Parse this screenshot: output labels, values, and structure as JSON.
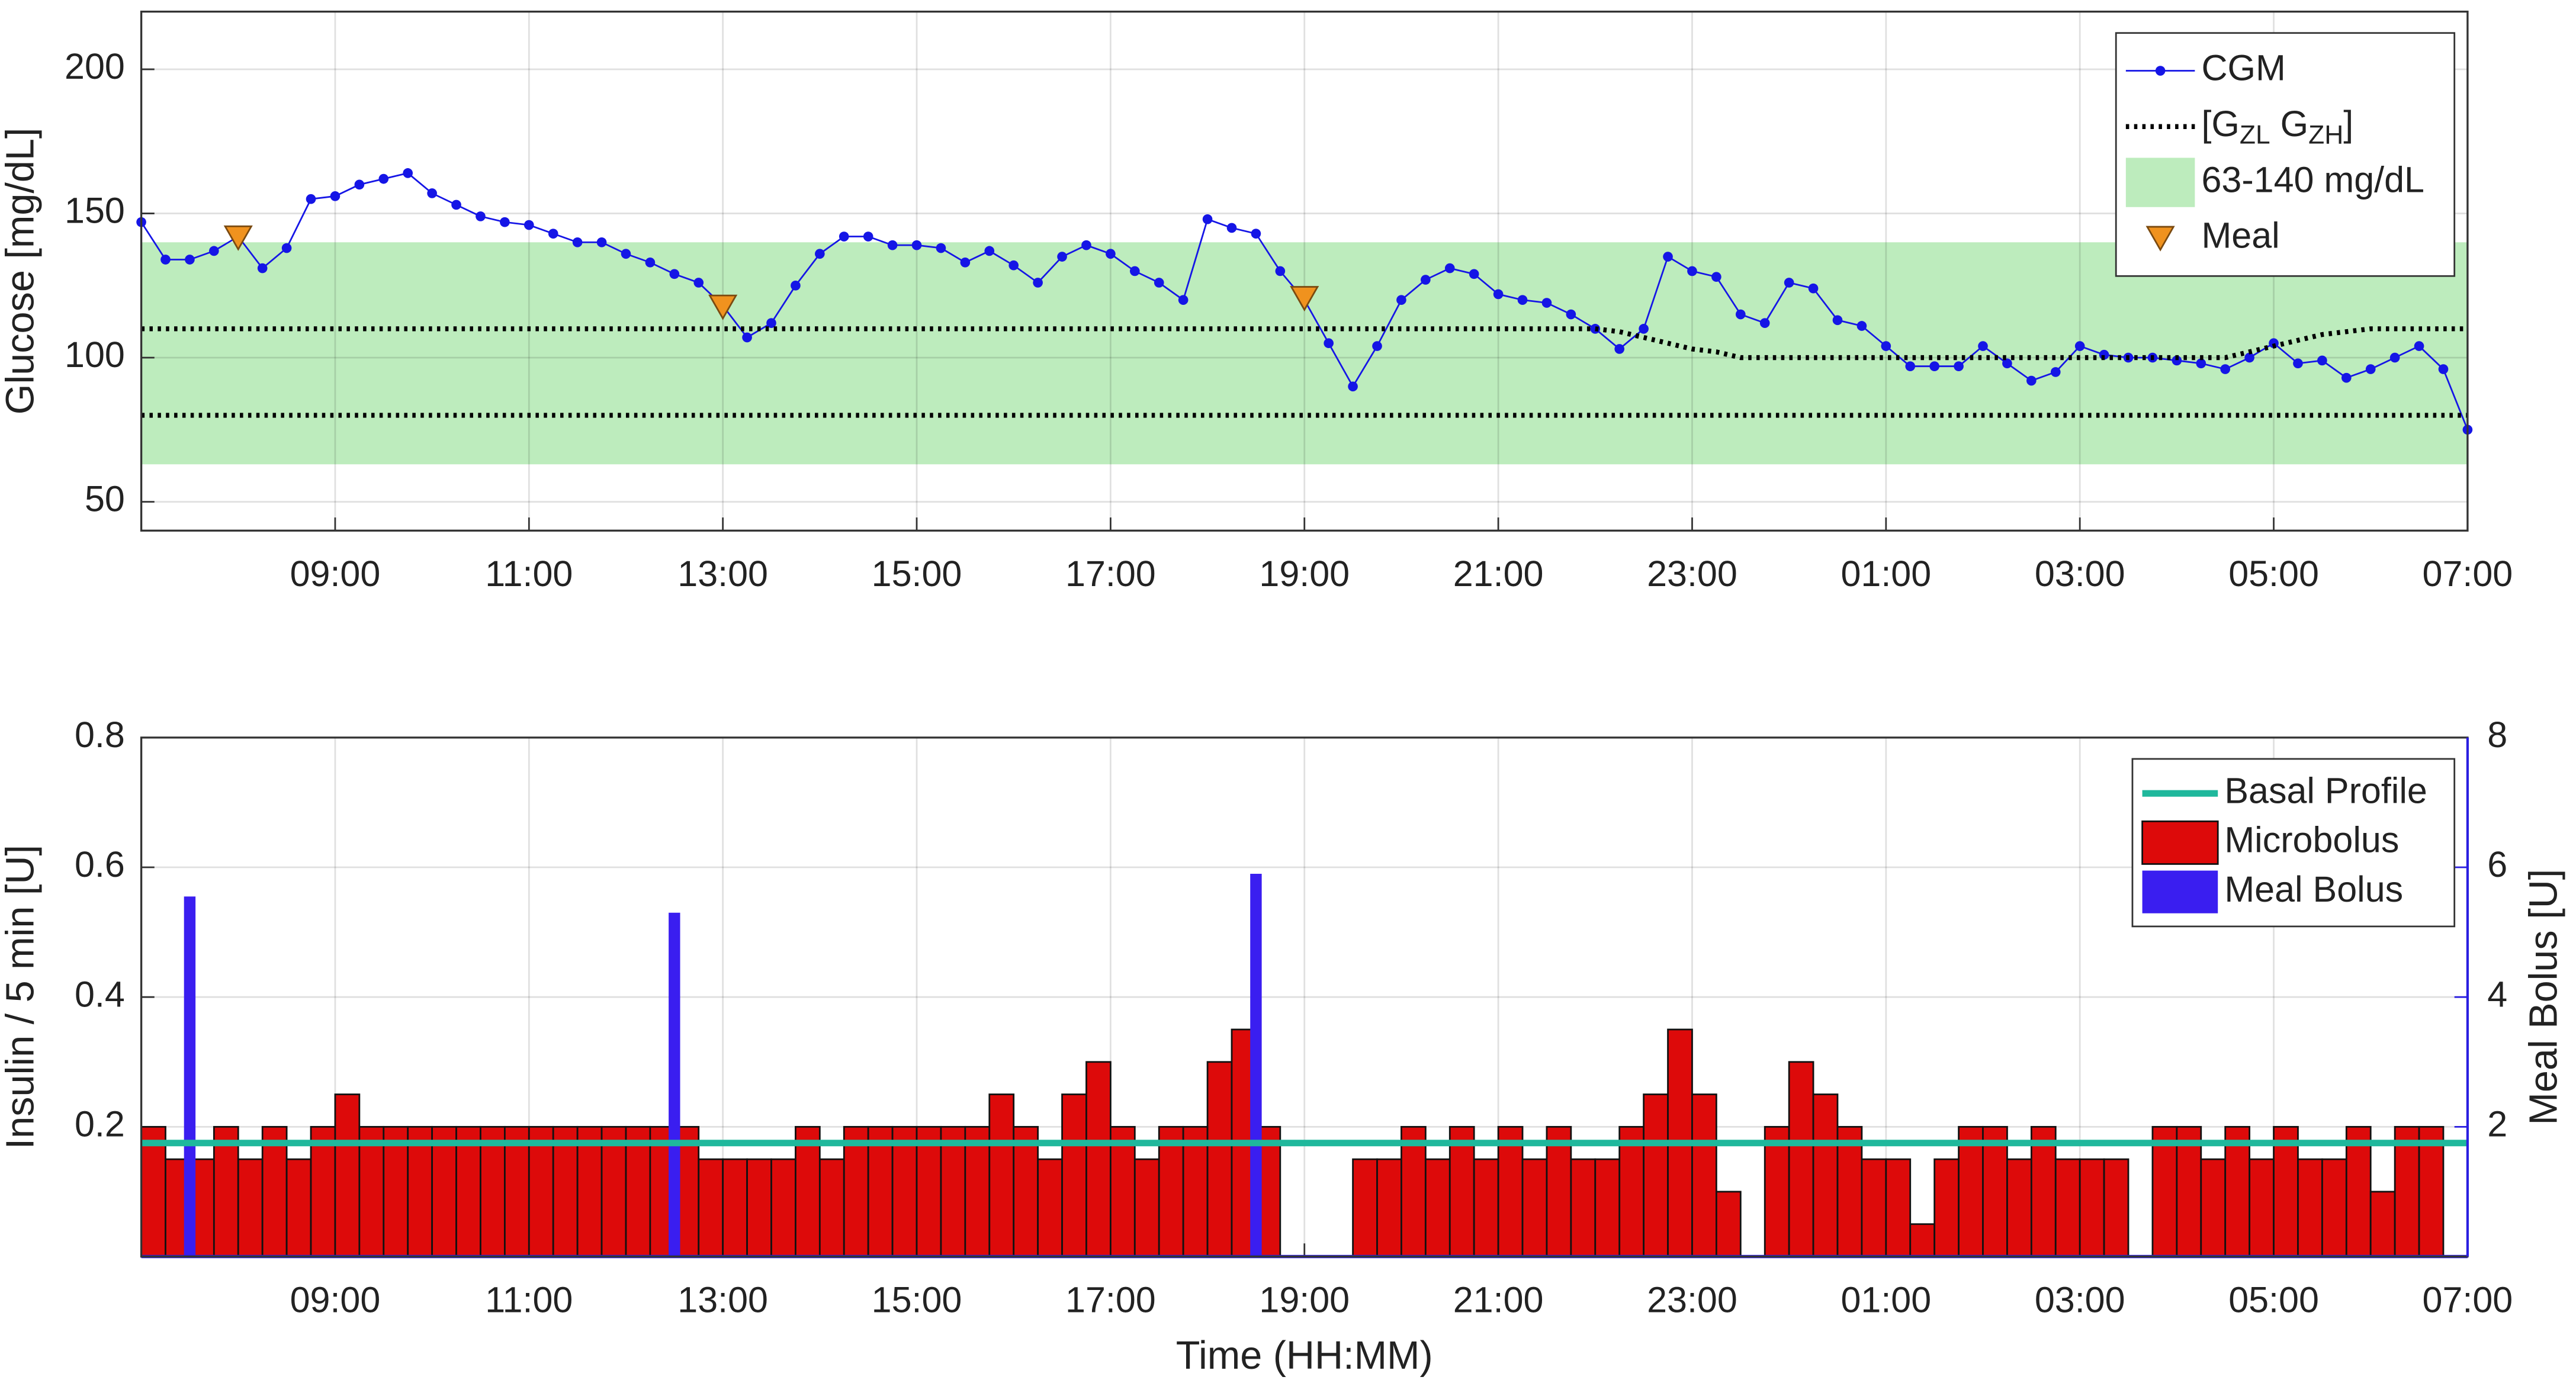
{
  "chart_data": [
    {
      "type": "line",
      "ylabel": "Glucose [mg/dL]",
      "xlim": [
        7,
        31
      ],
      "xticks": [
        {
          "value": 9,
          "label": "09:00"
        },
        {
          "value": 11,
          "label": "11:00"
        },
        {
          "value": 13,
          "label": "13:00"
        },
        {
          "value": 15,
          "label": "15:00"
        },
        {
          "value": 17,
          "label": "17:00"
        },
        {
          "value": 19,
          "label": "19:00"
        },
        {
          "value": 21,
          "label": "21:00"
        },
        {
          "value": 23,
          "label": "23:00"
        },
        {
          "value": 25,
          "label": "01:00"
        },
        {
          "value": 27,
          "label": "03:00"
        },
        {
          "value": 29,
          "label": "05:00"
        },
        {
          "value": 31,
          "label": "07:00"
        }
      ],
      "ylim": [
        40,
        220
      ],
      "yticks": [
        50,
        100,
        150,
        200
      ],
      "grid": true,
      "legend": "upper right",
      "x": [
        7,
        7.25,
        7.5,
        7.75,
        8,
        8.25,
        8.5,
        8.75,
        9,
        9.25,
        9.5,
        9.75,
        10,
        10.25,
        10.5,
        10.75,
        11,
        11.25,
        11.5,
        11.75,
        12,
        12.25,
        12.5,
        12.75,
        13,
        13.25,
        13.5,
        13.75,
        14,
        14.25,
        14.5,
        14.75,
        15,
        15.25,
        15.5,
        15.75,
        16,
        16.25,
        16.5,
        16.75,
        17,
        17.25,
        17.5,
        17.75,
        18,
        18.25,
        18.5,
        18.75,
        19,
        19.25,
        19.5,
        19.75,
        20,
        20.25,
        20.5,
        20.75,
        21,
        21.25,
        21.5,
        21.75,
        22,
        22.25,
        22.5,
        22.75,
        23,
        23.25,
        23.5,
        23.75,
        24,
        24.25,
        24.5,
        24.75,
        25,
        25.25,
        25.5,
        25.75,
        26,
        26.25,
        26.5,
        26.75,
        27,
        27.25,
        27.5,
        27.75,
        28,
        28.25,
        28.5,
        28.75,
        29,
        29.25,
        29.5,
        29.75,
        30,
        30.25,
        30.5,
        30.75,
        31
      ],
      "band": {
        "name": "63-140 mg/dL",
        "range": [
          63,
          140
        ],
        "color": "#bdecbd"
      },
      "series": [
        {
          "name": "CGM",
          "color": "#1515e6",
          "marker": "dot",
          "values": [
            147,
            134,
            134,
            137,
            142,
            131,
            138,
            155,
            156,
            160,
            162,
            164,
            157,
            153,
            149,
            147,
            146,
            143,
            140,
            140,
            136,
            133,
            129,
            126,
            118,
            107,
            112,
            125,
            136,
            142,
            142,
            139,
            139,
            138,
            133,
            137,
            132,
            126,
            135,
            139,
            136,
            130,
            126,
            120,
            148,
            145,
            143,
            130,
            120,
            105,
            90,
            104,
            120,
            127,
            131,
            129,
            122,
            120,
            119,
            115,
            110,
            103,
            110,
            135,
            130,
            128,
            115,
            112,
            126,
            124,
            113,
            111,
            104,
            97,
            97,
            97,
            104,
            98,
            92,
            95,
            104,
            101,
            100,
            100,
            99,
            98,
            96,
            100,
            105,
            98,
            99,
            93,
            96,
            100,
            104,
            96,
            75
          ]
        },
        {
          "name": "[GZL GZH]",
          "color": "#000000",
          "style": "dotted",
          "values": [
            110,
            110,
            110,
            110,
            110,
            110,
            110,
            110,
            110,
            110,
            110,
            110,
            110,
            110,
            110,
            110,
            110,
            110,
            110,
            110,
            110,
            110,
            110,
            110,
            110,
            110,
            110,
            110,
            110,
            110,
            110,
            110,
            110,
            110,
            110,
            110,
            110,
            110,
            110,
            110,
            110,
            110,
            110,
            110,
            110,
            110,
            110,
            110,
            110,
            110,
            110,
            110,
            110,
            110,
            110,
            110,
            110,
            110,
            110,
            110,
            110,
            109,
            107,
            105,
            103,
            102,
            100,
            100,
            100,
            100,
            100,
            100,
            100,
            100,
            100,
            100,
            100,
            100,
            100,
            100,
            100,
            100,
            100,
            100,
            100,
            100,
            100,
            102,
            104,
            106,
            108,
            109,
            110,
            110,
            110,
            110,
            110
          ],
          "lower": {
            "x": [
              7,
              31
            ],
            "values": [
              80,
              80
            ]
          }
        },
        {
          "name": "Meal",
          "color": "#f0921e",
          "marker": "triangle-down",
          "x": [
            8,
            13,
            19
          ],
          "values": [
            141,
            117,
            120
          ]
        }
      ]
    },
    {
      "type": "bar",
      "xlabel": "Time (HH:MM)",
      "ylabel": "Insulin / 5 min [U]",
      "y2label": "Meal Bolus [U]",
      "y2color": "#2a1ee0",
      "xlim": [
        7,
        31
      ],
      "xticks": [
        {
          "value": 9,
          "label": "09:00"
        },
        {
          "value": 11,
          "label": "11:00"
        },
        {
          "value": 13,
          "label": "13:00"
        },
        {
          "value": 15,
          "label": "15:00"
        },
        {
          "value": 17,
          "label": "17:00"
        },
        {
          "value": 19,
          "label": "19:00"
        },
        {
          "value": 21,
          "label": "21:00"
        },
        {
          "value": 23,
          "label": "23:00"
        },
        {
          "value": 25,
          "label": "01:00"
        },
        {
          "value": 27,
          "label": "03:00"
        },
        {
          "value": 29,
          "label": "05:00"
        },
        {
          "value": 31,
          "label": "07:00"
        }
      ],
      "ylim": [
        0,
        0.8
      ],
      "yticks": [
        0.2,
        0.4,
        0.6,
        0.8
      ],
      "y2lim": [
        0,
        8
      ],
      "y2ticks": [
        2,
        4,
        6,
        8
      ],
      "grid": true,
      "legend": "upper right",
      "series": [
        {
          "name": "Basal Profile",
          "kind": "line",
          "color": "#1fb89c",
          "x": [
            7,
            31
          ],
          "values": [
            0.175,
            0.175
          ]
        },
        {
          "name": "Microbolus",
          "kind": "bar",
          "color": "#dd0a0a",
          "x": [
            7,
            7.25,
            7.5,
            7.75,
            8,
            8.25,
            8.5,
            8.75,
            9,
            9.25,
            9.5,
            9.75,
            10,
            10.25,
            10.5,
            10.75,
            11,
            11.25,
            11.5,
            11.75,
            12,
            12.25,
            12.5,
            12.75,
            13,
            13.25,
            13.5,
            13.75,
            14,
            14.25,
            14.5,
            14.75,
            15,
            15.25,
            15.5,
            15.75,
            16,
            16.25,
            16.5,
            16.75,
            17,
            17.25,
            17.5,
            17.75,
            18,
            18.25,
            18.5,
            18.75,
            19,
            19.25,
            19.5,
            19.75,
            20,
            20.25,
            20.5,
            20.75,
            21,
            21.25,
            21.5,
            21.75,
            22,
            22.25,
            22.5,
            22.75,
            23,
            23.25,
            23.5,
            23.75,
            24,
            24.25,
            24.5,
            24.75,
            25,
            25.25,
            25.5,
            25.75,
            26,
            26.25,
            26.5,
            26.75,
            27,
            27.25,
            27.5,
            27.75,
            28,
            28.25,
            28.5,
            28.75,
            29,
            29.25,
            29.5,
            29.75,
            30,
            30.25,
            30.5,
            30.75
          ],
          "values": [
            0.2,
            0.15,
            0.15,
            0.2,
            0.15,
            0.2,
            0.15,
            0.2,
            0.25,
            0.2,
            0.2,
            0.2,
            0.2,
            0.2,
            0.2,
            0.2,
            0.2,
            0.2,
            0.2,
            0.2,
            0.2,
            0.2,
            0.2,
            0.15,
            0.15,
            0.15,
            0.15,
            0.2,
            0.15,
            0.2,
            0.2,
            0.2,
            0.2,
            0.2,
            0.2,
            0.25,
            0.2,
            0.15,
            0.25,
            0.3,
            0.2,
            0.15,
            0.2,
            0.2,
            0.3,
            0.35,
            0.2,
            0,
            0,
            0,
            0.15,
            0.15,
            0.2,
            0.15,
            0.2,
            0.15,
            0.2,
            0.15,
            0.2,
            0.15,
            0.15,
            0.2,
            0.25,
            0.35,
            0.25,
            0.1,
            0,
            0.2,
            0.3,
            0.25,
            0.2,
            0.15,
            0.15,
            0.05,
            0.15,
            0.2,
            0.2,
            0.15,
            0.2,
            0.15,
            0.15,
            0.15,
            0,
            0.2,
            0.2,
            0.15,
            0.2,
            0.15,
            0.2,
            0.15,
            0.15,
            0.2,
            0.1,
            0.2,
            0.2,
            0
          ]
        },
        {
          "name": "Meal Bolus",
          "kind": "bar",
          "axis": "y2",
          "color": "#3a1ef0",
          "x": [
            7.5,
            12.5,
            18.5
          ],
          "values": [
            5.55,
            5.3,
            5.9
          ]
        }
      ]
    }
  ]
}
